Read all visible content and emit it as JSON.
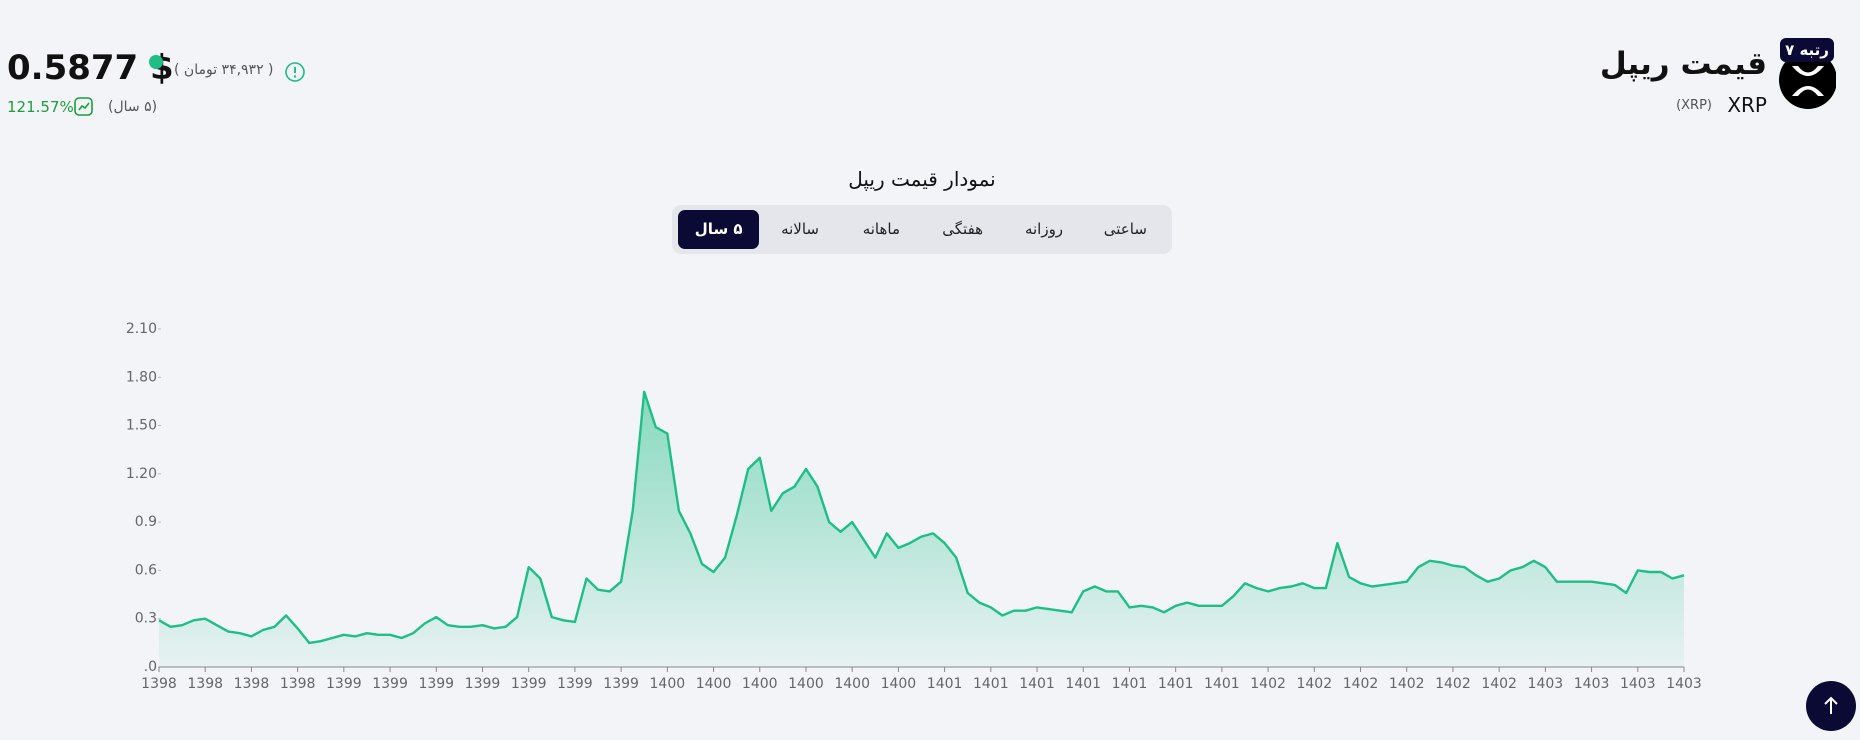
{
  "header": {
    "rank": "رتبه ۷",
    "title": "قیمت ریپل",
    "symbol": "XRP",
    "symbol_paren": "(XRP)"
  },
  "price": {
    "usd": "0.5877 $",
    "toman": "( ۳۴,۹۳۲ تومان )",
    "change": "121.57%",
    "period": "(۵ سال)"
  },
  "tabs": [
    "ساعتی",
    "روزانه",
    "هفتگی",
    "ماهانه",
    "سالانه",
    "۵ سال"
  ],
  "chart_data": {
    "type": "area",
    "title": "نمودار قیمت ریپل",
    "color": "#1dbf84",
    "values": [
      0.29,
      0.25,
      0.26,
      0.29,
      0.3,
      0.26,
      0.22,
      0.21,
      0.19,
      0.23,
      0.25,
      0.32,
      0.24,
      0.15,
      0.16,
      0.18,
      0.2,
      0.19,
      0.21,
      0.2,
      0.2,
      0.18,
      0.21,
      0.27,
      0.31,
      0.26,
      0.25,
      0.25,
      0.26,
      0.24,
      0.25,
      0.31,
      0.62,
      0.55,
      0.31,
      0.29,
      0.28,
      0.55,
      0.48,
      0.47,
      0.53,
      0.97,
      1.71,
      1.49,
      1.45,
      0.97,
      0.83,
      0.64,
      0.59,
      0.68,
      0.94,
      1.23,
      1.3,
      0.97,
      1.08,
      1.12,
      1.23,
      1.12,
      0.9,
      0.84,
      0.9,
      0.79,
      0.68,
      0.83,
      0.74,
      0.77,
      0.81,
      0.83,
      0.77,
      0.68,
      0.46,
      0.4,
      0.37,
      0.32,
      0.35,
      0.35,
      0.37,
      0.36,
      0.35,
      0.34,
      0.47,
      0.5,
      0.47,
      0.47,
      0.37,
      0.38,
      0.37,
      0.34,
      0.38,
      0.4,
      0.38,
      0.38,
      0.38,
      0.44,
      0.52,
      0.49,
      0.47,
      0.49,
      0.5,
      0.52,
      0.49,
      0.49,
      0.77,
      0.56,
      0.52,
      0.5,
      0.51,
      0.52,
      0.53,
      0.62,
      0.66,
      0.65,
      0.63,
      0.62,
      0.57,
      0.53,
      0.55,
      0.6,
      0.62,
      0.66,
      0.62,
      0.53,
      0.53,
      0.53,
      0.53,
      0.52,
      0.51,
      0.46,
      0.6,
      0.59,
      0.59,
      0.55,
      0.57
    ],
    "xlim": [
      0,
      132
    ],
    "xticks": [
      {
        "value": 0,
        "label": "1398"
      },
      {
        "value": 4,
        "label": "1398"
      },
      {
        "value": 8,
        "label": "1398"
      },
      {
        "value": 12,
        "label": "1398"
      },
      {
        "value": 16,
        "label": "1399"
      },
      {
        "value": 20,
        "label": "1399"
      },
      {
        "value": 24,
        "label": "1399"
      },
      {
        "value": 28,
        "label": "1399"
      },
      {
        "value": 32,
        "label": "1399"
      },
      {
        "value": 36,
        "label": "1399"
      },
      {
        "value": 40,
        "label": "1399"
      },
      {
        "value": 44,
        "label": "1400"
      },
      {
        "value": 48,
        "label": "1400"
      },
      {
        "value": 52,
        "label": "1400"
      },
      {
        "value": 56,
        "label": "1400"
      },
      {
        "value": 60,
        "label": "1400"
      },
      {
        "value": 64,
        "label": "1400"
      },
      {
        "value": 68,
        "label": "1401"
      },
      {
        "value": 72,
        "label": "1401"
      },
      {
        "value": 76,
        "label": "1401"
      },
      {
        "value": 80,
        "label": "1401"
      },
      {
        "value": 84,
        "label": "1401"
      },
      {
        "value": 88,
        "label": "1401"
      },
      {
        "value": 92,
        "label": "1401"
      },
      {
        "value": 96,
        "label": "1402"
      },
      {
        "value": 100,
        "label": "1402"
      },
      {
        "value": 104,
        "label": "1402"
      },
      {
        "value": 108,
        "label": "1402"
      },
      {
        "value": 112,
        "label": "1402"
      },
      {
        "value": 116,
        "label": "1402"
      },
      {
        "value": 120,
        "label": "1403"
      },
      {
        "value": 124,
        "label": "1403"
      },
      {
        "value": 128,
        "label": "1403"
      },
      {
        "value": 132,
        "label": "1403"
      }
    ],
    "ylim": [
      0,
      2.1
    ],
    "yticks": [
      {
        "value": 0,
        "label": ".0"
      },
      0.3,
      0.6,
      0.9,
      {
        "value": 1.2,
        "label": "1.20"
      },
      {
        "value": 1.5,
        "label": "1.50"
      },
      {
        "value": 1.8,
        "label": "1.80"
      },
      {
        "value": 2.1,
        "label": "2.10"
      }
    ],
    "grid": false
  }
}
